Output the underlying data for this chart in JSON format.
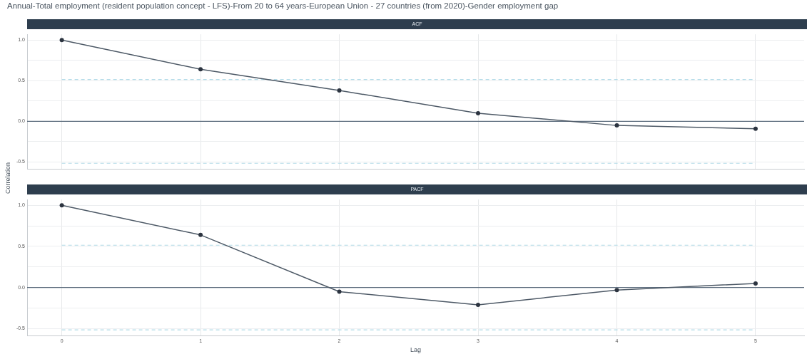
{
  "chart_data": [
    {
      "type": "line",
      "title": "Annual-Total employment (resident population concept - LFS)-From 20 to 64 years-European Union - 27 countries (from 2020)-Gender employment gap",
      "subtitle": "ACF",
      "ylabel": "Correlation",
      "x": [
        0,
        1,
        2,
        3,
        4,
        5
      ],
      "series": [
        {
          "color": "#4d5966",
          "values": [
            1.0,
            0.64,
            0.38,
            0.1,
            -0.05,
            -0.09
          ]
        }
      ],
      "xlim": [
        -0.25,
        5.35
      ],
      "xticks": [
        0,
        1,
        2,
        3,
        4,
        5
      ],
      "ylim": [
        -0.59,
        1.07
      ],
      "yticks": [
        {
          "value": -0.5,
          "label": "-0.5"
        },
        {
          "value": -0.25,
          "label": null
        },
        {
          "value": 0,
          "label": "0.0"
        },
        {
          "value": 0.25,
          "label": null
        },
        {
          "value": 0.5,
          "label": "0.5"
        },
        {
          "value": 0.75,
          "label": null
        },
        {
          "value": 1,
          "label": "1.0"
        }
      ],
      "ref_lines": [
        {
          "axis": "y",
          "value": 0,
          "color": "#5d6d7e",
          "line_style": "solid"
        },
        {
          "axis": "y",
          "value": 0.515,
          "color": "#b3dbe8",
          "line_style": "dashed"
        },
        {
          "axis": "y",
          "value": -0.515,
          "color": "#b3dbe8",
          "line_style": "dashed"
        }
      ],
      "grid": true,
      "marker": "circle",
      "line_style": "solid",
      "legend": false,
      "tick_labels": "y"
    },
    {
      "type": "line",
      "subtitle": "PACF",
      "xlabel": "Lag",
      "x": [
        0,
        1,
        2,
        3,
        4,
        5
      ],
      "series": [
        {
          "color": "#4d5966",
          "values": [
            1.0,
            0.64,
            -0.05,
            -0.21,
            -0.03,
            0.05
          ]
        }
      ],
      "xlim": [
        -0.25,
        5.35
      ],
      "xticks": [
        0,
        1,
        2,
        3,
        4,
        5
      ],
      "ylim": [
        -0.59,
        1.07
      ],
      "yticks": [
        {
          "value": -0.5,
          "label": "-0.5"
        },
        {
          "value": -0.25,
          "label": null
        },
        {
          "value": 0,
          "label": "0.0"
        },
        {
          "value": 0.25,
          "label": null
        },
        {
          "value": 0.5,
          "label": "0.5"
        },
        {
          "value": 0.75,
          "label": null
        },
        {
          "value": 1,
          "label": "1.0"
        }
      ],
      "ref_lines": [
        {
          "axis": "y",
          "value": 0,
          "color": "#5d6d7e",
          "line_style": "solid"
        },
        {
          "axis": "y",
          "value": 0.515,
          "color": "#b3dbe8",
          "line_style": "dashed"
        },
        {
          "axis": "y",
          "value": -0.515,
          "color": "#b3dbe8",
          "line_style": "dashed"
        }
      ],
      "grid": true,
      "marker": "circle",
      "line_style": "solid",
      "legend": false
    }
  ]
}
